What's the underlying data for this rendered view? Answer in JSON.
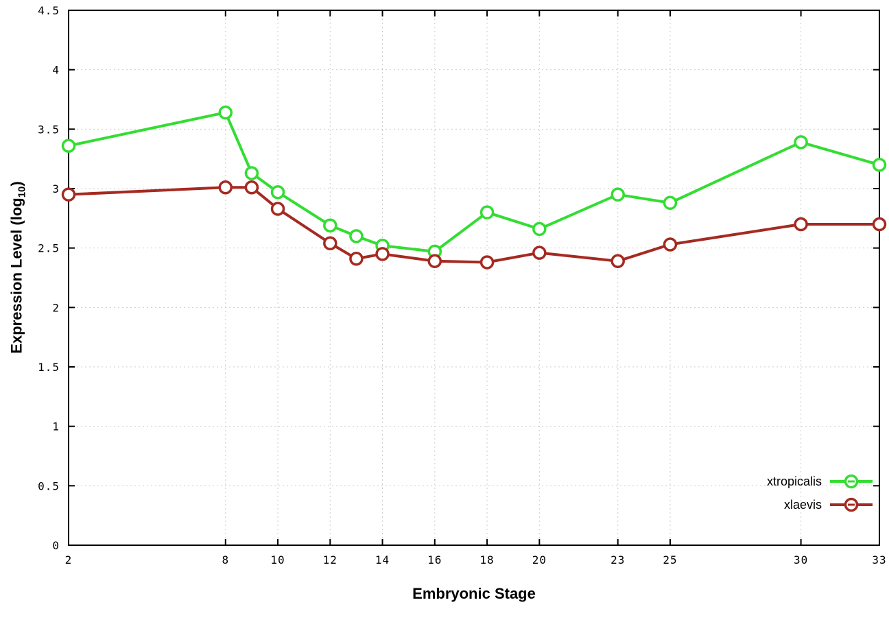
{
  "chart_data": {
    "type": "line",
    "title": "",
    "xlabel": "Embryonic Stage",
    "ylabel": "Expression Level (log10)",
    "ylabel_parts": {
      "prefix": "Expression Level (log",
      "sub": "10",
      "suffix": ")"
    },
    "xlim": [
      2,
      33
    ],
    "ylim": [
      0,
      4.5
    ],
    "grid": true,
    "legend_position": "bottom-right",
    "x": [
      2,
      8,
      9,
      10,
      12,
      13,
      14,
      16,
      18,
      20,
      23,
      25,
      30,
      33
    ],
    "xticks": [
      2,
      8,
      10,
      12,
      14,
      16,
      18,
      20,
      23,
      25,
      30,
      33
    ],
    "xtick_labels": [
      "2",
      "8",
      "10",
      "12",
      "14",
      "16",
      "18",
      "20",
      "23",
      "25",
      "30",
      "33"
    ],
    "yticks": [
      0,
      0.5,
      1,
      1.5,
      2,
      2.5,
      3,
      3.5,
      4,
      4.5
    ],
    "ytick_labels": [
      "0",
      "0.5",
      "1",
      "1.5",
      "2",
      "2.5",
      "3",
      "3.5",
      "4",
      "4.5"
    ],
    "series": [
      {
        "name": "xtropicalis",
        "color": "#33dd33",
        "values": [
          3.36,
          3.64,
          3.13,
          2.97,
          2.69,
          2.6,
          2.52,
          2.47,
          2.8,
          2.66,
          2.95,
          2.88,
          3.39,
          3.2
        ]
      },
      {
        "name": "xlaevis",
        "color": "#a52a21",
        "values": [
          2.95,
          3.01,
          3.01,
          2.83,
          2.54,
          2.41,
          2.45,
          2.39,
          2.38,
          2.46,
          2.39,
          2.53,
          2.7,
          2.7
        ]
      }
    ],
    "colors": {
      "grid": "#cccccc",
      "border": "#000000",
      "background": "#ffffff"
    }
  }
}
